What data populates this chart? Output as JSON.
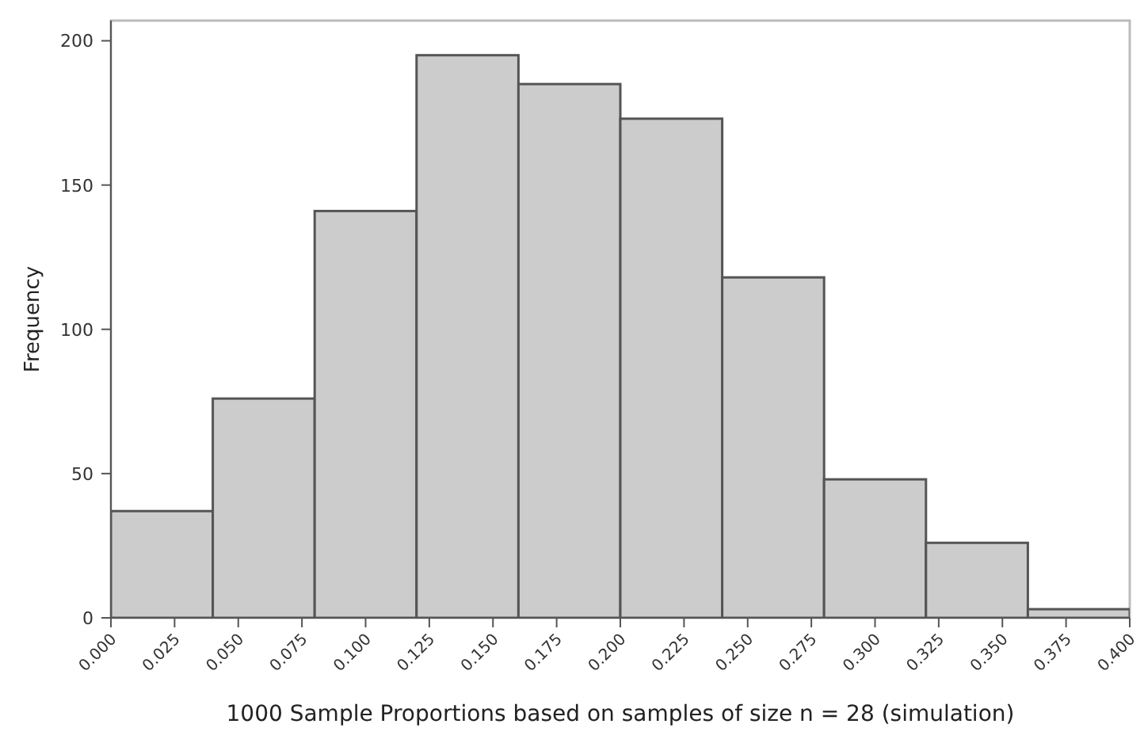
{
  "chart_data": {
    "type": "histogram",
    "xlabel": "1000 Sample Proportions based on samples of size n = 28 (simulation)",
    "ylabel": "Frequency",
    "bins": [
      0,
      0.04,
      0.08,
      0.12,
      0.16,
      0.2,
      0.24,
      0.28,
      0.32,
      0.36,
      0.4
    ],
    "values": [
      37,
      76,
      141,
      195,
      185,
      173,
      118,
      48,
      26,
      3
    ],
    "color": "#cccccc",
    "xlim": [
      0,
      0.4
    ],
    "ylim": [
      0,
      207
    ],
    "xticks": [
      {
        "value": 0,
        "label": "0.000"
      },
      {
        "value": 0.025,
        "label": "0.025"
      },
      {
        "value": 0.05,
        "label": "0.050"
      },
      {
        "value": 0.075,
        "label": "0.075"
      },
      {
        "value": 0.1,
        "label": "0.100"
      },
      {
        "value": 0.125,
        "label": "0.125"
      },
      {
        "value": 0.15,
        "label": "0.150"
      },
      {
        "value": 0.175,
        "label": "0.175"
      },
      {
        "value": 0.2,
        "label": "0.200"
      },
      {
        "value": 0.225,
        "label": "0.225"
      },
      {
        "value": 0.25,
        "label": "0.250"
      },
      {
        "value": 0.275,
        "label": "0.275"
      },
      {
        "value": 0.3,
        "label": "0.300"
      },
      {
        "value": 0.325,
        "label": "0.325"
      },
      {
        "value": 0.35,
        "label": "0.350"
      },
      {
        "value": 0.375,
        "label": "0.375"
      },
      {
        "value": 0.4,
        "label": "0.400"
      }
    ],
    "yticks": [
      0,
      50,
      100,
      150,
      200
    ]
  }
}
